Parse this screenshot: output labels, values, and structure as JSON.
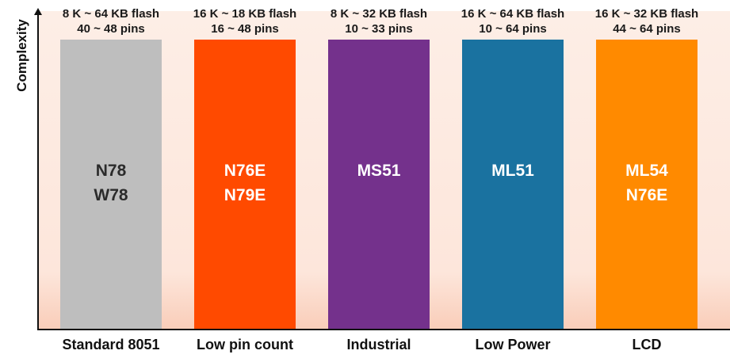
{
  "chart_data": {
    "type": "bar",
    "title": "",
    "xlabel": "",
    "ylabel": "Complexity",
    "categories": [
      "Standard 8051",
      "Low pin count",
      "Industrial",
      "Low Power",
      "LCD"
    ],
    "values": [
      1,
      1,
      1,
      1,
      1
    ],
    "ylim": [
      0,
      1.1
    ],
    "grid": false,
    "legend": "none",
    "bar_colors": [
      "#bebebe",
      "#ff4a00",
      "#74318c",
      "#1a72a0",
      "#ff8a00"
    ],
    "bar_text_colors": [
      "#2b2b2b",
      "#ffffff",
      "#ffffff",
      "#ffffff",
      "#ffffff"
    ],
    "bar_labels": [
      [
        "N78",
        "W78"
      ],
      [
        "N76E",
        "N79E"
      ],
      [
        "MS51"
      ],
      [
        "ML51"
      ],
      [
        "ML54",
        "N76E"
      ]
    ],
    "annotations": [
      {
        "flash": "8 K ~ 64 KB flash",
        "pins": "40 ~ 48 pins"
      },
      {
        "flash": "16 K ~ 18 KB flash",
        "pins": "16 ~ 48 pins"
      },
      {
        "flash": "8 K ~ 32 KB flash",
        "pins": "10 ~ 33 pins"
      },
      {
        "flash": "16 K ~ 64 KB flash",
        "pins": "10 ~ 64 pins"
      },
      {
        "flash": "16 K ~ 32 KB flash",
        "pins": "44 ~ 64 pins"
      }
    ]
  }
}
